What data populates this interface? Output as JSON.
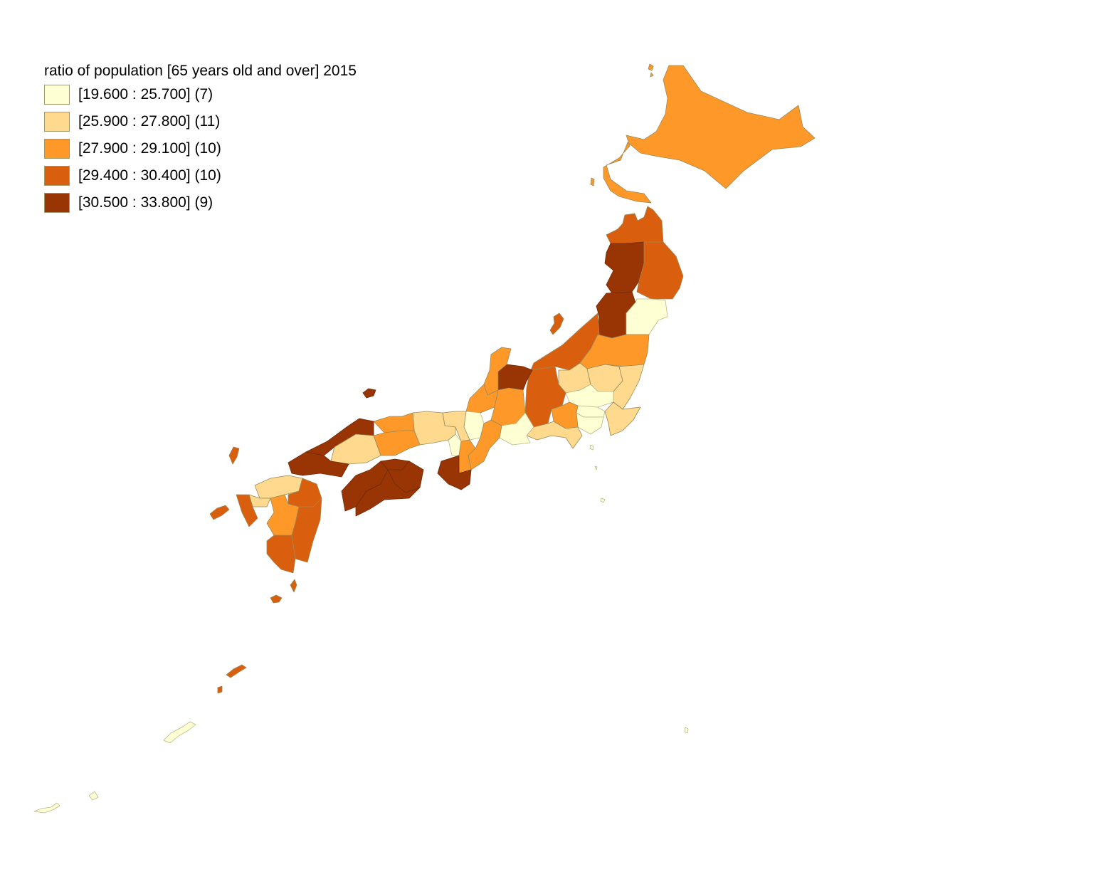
{
  "legend": {
    "title": "ratio of population [65 years old and over] 2015",
    "classes": [
      {
        "label": "[19.600 : 25.700] (7)",
        "color": "#ffffd4"
      },
      {
        "label": "[25.900 : 27.800] (11)",
        "color": "#fed98e"
      },
      {
        "label": "[27.900 : 29.100] (10)",
        "color": "#fe9929"
      },
      {
        "label": "[29.400 : 30.400] (10)",
        "color": "#d95f0e"
      },
      {
        "label": "[30.500 : 33.800] (9)",
        "color": "#993404"
      }
    ]
  }
}
